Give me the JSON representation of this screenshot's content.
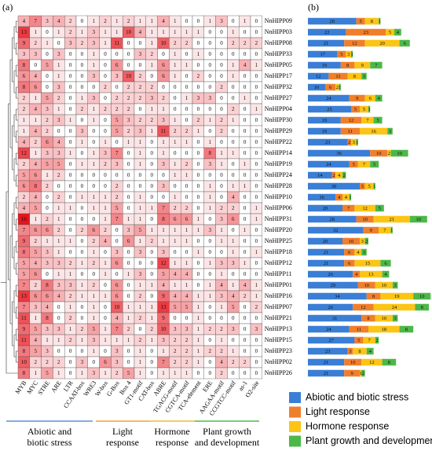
{
  "chart_data": [
    {
      "type": "heatmap",
      "panel_label": "(a)",
      "x_categories": [
        "MYB",
        "MYC",
        "STRE",
        "ARE",
        "LTR",
        "CCAAT-box",
        "WRE3",
        "W-box",
        "G-Box",
        "Box 4",
        "GT1-motif",
        "CAT-box",
        "ABRE",
        "TGACG-motif",
        "CGTCA-motif",
        "TCA-element",
        "ERE",
        "AAGAA-motif",
        "CCGTCC-motif",
        "as-1",
        "O2-site"
      ],
      "y_categories": [
        "NnHIPP09",
        "NnHIPP03",
        "NnHIPP08",
        "NnHIPP33",
        "NnHIPP05",
        "NnHIPP17",
        "NnHIPP32",
        "NnHIPP27",
        "NnHIPP04",
        "NnHIPP30",
        "NnHIPP29",
        "NnHIPP22",
        "NnHIPP14",
        "NnHIPP19",
        "NnHIPP24",
        "NnHIPP28",
        "NnHIPP10",
        "NnHIPP06",
        "NnHIPP31",
        "NnHIPP20",
        "NnHIPP25",
        "NnHIPP18",
        "NnHIPP12",
        "NnHIPP11",
        "NnHIPP01",
        "NnHIPP16",
        "NnHIPP07",
        "NnHIPP21",
        "NnHIPP13",
        "NnHIPP15",
        "NnHIPP23",
        "NnHIPP02",
        "NnHIPP26"
      ],
      "values": [
        [
          4,
          7,
          3,
          4,
          2,
          0,
          1,
          2,
          1,
          2,
          1,
          1,
          4,
          1,
          0,
          0,
          1,
          3,
          0,
          1,
          0
        ],
        [
          13,
          1,
          0,
          1,
          2,
          1,
          3,
          1,
          1,
          10,
          4,
          1,
          1,
          1,
          1,
          1,
          0,
          0,
          1,
          0,
          0
        ],
        [
          9,
          2,
          1,
          0,
          3,
          2,
          3,
          1,
          11,
          0,
          0,
          1,
          10,
          2,
          2,
          0,
          0,
          0,
          2,
          2,
          2
        ],
        [
          3,
          3,
          0,
          3,
          0,
          0,
          1,
          0,
          0,
          0,
          3,
          2,
          0,
          1,
          0,
          1,
          0,
          0,
          0,
          0,
          0
        ],
        [
          8,
          0,
          5,
          1,
          0,
          0,
          1,
          0,
          6,
          0,
          0,
          1,
          6,
          1,
          1,
          0,
          0,
          0,
          1,
          4,
          1
        ],
        [
          6,
          4,
          0,
          1,
          0,
          0,
          3,
          0,
          3,
          10,
          2,
          0,
          6,
          1,
          0,
          2,
          0,
          0,
          1,
          0,
          0
        ],
        [
          8,
          6,
          0,
          3,
          0,
          0,
          0,
          2,
          0,
          2,
          2,
          2,
          0,
          0,
          0,
          0,
          0,
          2,
          0,
          0,
          0
        ],
        [
          2,
          1,
          5,
          2,
          0,
          1,
          3,
          0,
          2,
          2,
          2,
          3,
          2,
          0,
          1,
          3,
          3,
          0,
          0,
          1,
          0
        ],
        [
          2,
          4,
          3,
          1,
          0,
          2,
          1,
          2,
          2,
          2,
          0,
          1,
          1,
          0,
          0,
          0,
          0,
          0,
          2,
          0,
          1
        ],
        [
          1,
          1,
          2,
          3,
          1,
          0,
          1,
          0,
          5,
          3,
          2,
          2,
          3,
          1,
          0,
          2,
          1,
          2,
          1,
          0,
          0
        ],
        [
          1,
          4,
          2,
          0,
          0,
          3,
          0,
          0,
          5,
          2,
          3,
          1,
          11,
          2,
          2,
          1,
          0,
          2,
          0,
          0,
          0
        ],
        [
          4,
          2,
          6,
          4,
          0,
          1,
          0,
          1,
          0,
          1,
          1,
          0,
          1,
          1,
          1,
          0,
          1,
          0,
          0,
          0,
          0
        ],
        [
          12,
          1,
          3,
          3,
          1,
          0,
          1,
          3,
          7,
          0,
          1,
          0,
          1,
          0,
          0,
          0,
          8,
          1,
          1,
          0,
          0
        ],
        [
          2,
          4,
          5,
          5,
          0,
          1,
          1,
          2,
          3,
          0,
          1,
          0,
          3,
          1,
          2,
          0,
          3,
          1,
          0,
          1,
          0
        ],
        [
          5,
          6,
          1,
          2,
          0,
          0,
          0,
          0,
          0,
          0,
          0,
          0,
          0,
          1,
          1,
          0,
          0,
          0,
          0,
          0,
          0
        ],
        [
          6,
          8,
          2,
          0,
          0,
          0,
          0,
          0,
          2,
          0,
          0,
          0,
          3,
          0,
          0,
          0,
          1,
          0,
          1,
          1,
          0
        ],
        [
          2,
          4,
          0,
          2,
          0,
          1,
          1,
          1,
          2,
          0,
          1,
          0,
          0,
          1,
          0,
          0,
          1,
          0,
          4,
          0,
          0
        ],
        [
          4,
          5,
          0,
          1,
          1,
          0,
          1,
          1,
          5,
          0,
          1,
          1,
          7,
          2,
          2,
          0,
          1,
          2,
          2,
          0,
          1
        ],
        [
          16,
          1,
          2,
          1,
          0,
          0,
          0,
          1,
          7,
          1,
          1,
          0,
          8,
          6,
          6,
          1,
          0,
          3,
          6,
          0,
          1
        ],
        [
          7,
          6,
          6,
          2,
          0,
          2,
          6,
          2,
          0,
          3,
          5,
          1,
          1,
          1,
          1,
          1,
          3,
          1,
          0,
          1,
          0
        ],
        [
          9,
          2,
          1,
          1,
          1,
          0,
          2,
          4,
          0,
          6,
          1,
          2,
          1,
          1,
          1,
          0,
          0,
          1,
          1,
          0,
          0
        ],
        [
          8,
          5,
          3,
          1,
          0,
          0,
          1,
          0,
          3,
          0,
          3,
          0,
          3,
          0,
          0,
          1,
          0,
          0,
          1,
          0,
          1
        ],
        [
          5,
          4,
          3,
          3,
          2,
          1,
          2,
          1,
          6,
          0,
          0,
          0,
          12,
          1,
          1,
          0,
          1,
          3,
          3,
          1,
          0
        ],
        [
          5,
          6,
          0,
          1,
          1,
          0,
          0,
          1,
          0,
          1,
          3,
          0,
          5,
          4,
          4,
          0,
          0,
          1,
          0,
          0,
          0
        ],
        [
          7,
          2,
          8,
          3,
          3,
          1,
          2,
          0,
          6,
          0,
          1,
          1,
          4,
          1,
          1,
          0,
          1,
          4,
          1,
          4,
          1
        ],
        [
          13,
          6,
          6,
          4,
          2,
          1,
          1,
          1,
          6,
          0,
          2,
          0,
          9,
          4,
          4,
          1,
          1,
          3,
          4,
          2,
          1
        ],
        [
          7,
          3,
          4,
          0,
          1,
          0,
          1,
          0,
          10,
          1,
          1,
          1,
          13,
          5,
          5,
          1,
          0,
          1,
          5,
          0,
          2
        ],
        [
          11,
          1,
          8,
          0,
          2,
          0,
          1,
          0,
          4,
          1,
          2,
          1,
          9,
          0,
          0,
          1,
          0,
          0,
          0,
          0,
          0
        ],
        [
          9,
          5,
          3,
          3,
          1,
          2,
          5,
          1,
          7,
          2,
          0,
          2,
          10,
          3,
          3,
          1,
          2,
          2,
          3,
          0,
          3
        ],
        [
          11,
          4,
          1,
          1,
          2,
          1,
          3,
          1,
          1,
          1,
          2,
          1,
          3,
          2,
          2,
          1,
          0,
          1,
          0,
          0,
          0
        ],
        [
          8,
          5,
          3,
          0,
          0,
          0,
          1,
          0,
          3,
          0,
          1,
          0,
          1,
          2,
          2,
          1,
          2,
          2,
          1,
          0,
          0
        ],
        [
          10,
          2,
          2,
          2,
          0,
          3,
          0,
          6,
          3,
          0,
          1,
          0,
          7,
          2,
          2,
          1,
          0,
          4,
          2,
          2,
          0
        ],
        [
          8,
          1,
          5,
          1,
          0,
          1,
          3,
          1,
          2,
          5,
          1,
          0,
          1,
          1,
          1,
          0,
          0,
          2,
          0,
          0,
          0
        ]
      ],
      "color": "#e8141c",
      "groups": [
        {
          "name": "Abiotic and biotic stress",
          "color": "#5b8fd9"
        },
        {
          "name": "Light response",
          "color": "#f0a030"
        },
        {
          "name": "Hormone response",
          "color": "#e8c020"
        },
        {
          "name": "Plant growth and development",
          "color": "#4cb848"
        }
      ]
    },
    {
      "type": "stacked_bar",
      "panel_label": "(b)",
      "orientation": "horizontal",
      "legend": "bottom",
      "series": [
        {
          "name": "Abiotic and biotic stress",
          "color": "#3a7fd5",
          "values": [
            28,
            22,
            21,
            17,
            19,
            12,
            10,
            24,
            25,
            19,
            19,
            23,
            36,
            24,
            14,
            30,
            16,
            20,
            28,
            32,
            20,
            21,
            21,
            26,
            29,
            34,
            26,
            31,
            24,
            27,
            23,
            21,
            21
          ]
        },
        {
          "name": "Light response",
          "color": "#f07f2b",
          "values": [
            5,
            23,
            12,
            5,
            8,
            11,
            6,
            9,
            5,
            12,
            11,
            2,
            10,
            5,
            2,
            3,
            4,
            7,
            10,
            9,
            10,
            6,
            6,
            4,
            10,
            8,
            12,
            8,
            11,
            5,
            3,
            10,
            9
          ]
        },
        {
          "name": "Hormone response",
          "color": "#fcc515",
          "values": [
            8,
            5,
            20,
            3,
            9,
            8,
            2,
            6,
            5,
            7,
            16,
            3,
            2,
            7,
            4,
            5,
            4,
            12,
            21,
            7,
            3,
            4,
            15,
            13,
            10,
            19,
            24,
            10,
            18,
            7,
            8,
            12,
            1
          ]
        },
        {
          "name": "Plant growth and development",
          "color": "#4cb848",
          "values": [
            1,
            4,
            6,
            1,
            7,
            3,
            1,
            4,
            1,
            5,
            3,
            1,
            10,
            5,
            2,
            1,
            1,
            5,
            10,
            1,
            2,
            3,
            6,
            4,
            3,
            10,
            8,
            3,
            8,
            2,
            4,
            8,
            2
          ]
        }
      ]
    }
  ]
}
